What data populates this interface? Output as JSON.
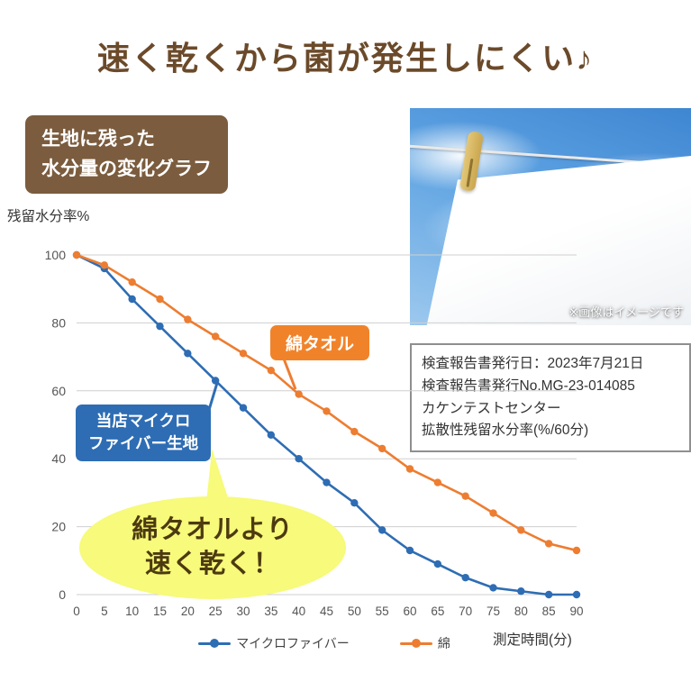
{
  "page": {
    "title": "速く乾くから菌が発生しにくい♪"
  },
  "badge": {
    "line1": "生地に残った",
    "line2": "水分量の変化グラフ"
  },
  "photo": {
    "caption": "※画像はイメージです"
  },
  "report_box": {
    "lines": [
      "検査報告書発行日：2023年7月21日",
      "検査報告書発行No.MG-23-014085",
      "カケンテストセンター",
      "拡散性残留水分率(%/60分)"
    ]
  },
  "annotations": {
    "cotton_label": "綿タオル",
    "micro_label_line1": "当店マイクロ",
    "micro_label_line2": "ファイバー生地",
    "callout_line1": "綿タオルより",
    "callout_line2": "速く乾く！"
  },
  "chart_data": {
    "type": "line",
    "ylabel": "残留水分率%",
    "xlabel": "測定時間(分)",
    "x": [
      0,
      5,
      10,
      15,
      20,
      25,
      30,
      35,
      40,
      45,
      50,
      55,
      60,
      65,
      70,
      75,
      80,
      85,
      90
    ],
    "series": [
      {
        "name": "マイクロファイバー",
        "color": "#2e6db4",
        "values": [
          100,
          96,
          87,
          79,
          71,
          63,
          55,
          47,
          40,
          33,
          27,
          19,
          13,
          9,
          5,
          2,
          1,
          0,
          0
        ]
      },
      {
        "name": "綿",
        "color": "#ed7d31",
        "values": [
          100,
          97,
          92,
          87,
          81,
          76,
          71,
          66,
          59,
          54,
          48,
          43,
          37,
          33,
          29,
          24,
          19,
          15,
          13
        ]
      }
    ],
    "xlim": [
      0,
      90
    ],
    "ylim": [
      0,
      100
    ],
    "yticks": [
      0,
      20,
      40,
      60,
      80,
      100
    ],
    "grid": "horizontal",
    "legend_position": "bottom"
  },
  "colors": {
    "title_brown": "#6b4a2a",
    "badge_brown": "#7b5c3e",
    "microfiber_blue": "#2e6db4",
    "cotton_orange": "#ed7d31",
    "annotation_orange": "#f0832a",
    "callout_yellow": "#f7fa7a",
    "gridline_gray": "#cfcfcf"
  }
}
